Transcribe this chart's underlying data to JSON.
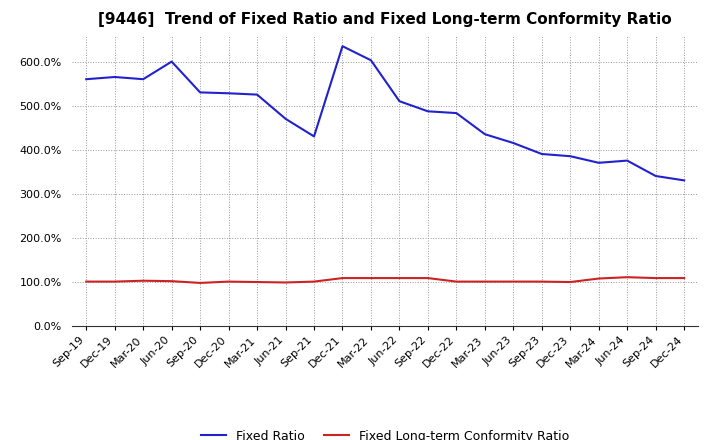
{
  "title": "[9446]  Trend of Fixed Ratio and Fixed Long-term Conformity Ratio",
  "x_labels": [
    "Sep-19",
    "Dec-19",
    "Mar-20",
    "Jun-20",
    "Sep-20",
    "Dec-20",
    "Mar-21",
    "Jun-21",
    "Sep-21",
    "Dec-21",
    "Mar-22",
    "Jun-22",
    "Sep-22",
    "Dec-22",
    "Mar-23",
    "Jun-23",
    "Sep-23",
    "Dec-23",
    "Mar-24",
    "Jun-24",
    "Sep-24",
    "Dec-24"
  ],
  "fixed_ratio": [
    560,
    565,
    560,
    600,
    530,
    528,
    525,
    470,
    430,
    635,
    603,
    510,
    487,
    483,
    435,
    415,
    390,
    385,
    370,
    375,
    340,
    330
  ],
  "fixed_lt_ratio": [
    100,
    100,
    102,
    101,
    97,
    100,
    99,
    98,
    100,
    108,
    108,
    108,
    108,
    100,
    100,
    100,
    100,
    99,
    107,
    110,
    108,
    108
  ],
  "fixed_ratio_color": "#2222CC",
  "fixed_lt_ratio_color": "#CC2222",
  "ylim": [
    0,
    660
  ],
  "yticks": [
    0,
    100,
    200,
    300,
    400,
    500,
    600
  ],
  "background_color": "#FFFFFF",
  "plot_bg_color": "#FFFFFF",
  "grid_color": "#999999",
  "legend_fixed_ratio": "Fixed Ratio",
  "legend_fixed_lt_ratio": "Fixed Long-term Conformity Ratio",
  "title_fontsize": 11,
  "tick_fontsize": 8,
  "legend_fontsize": 9
}
